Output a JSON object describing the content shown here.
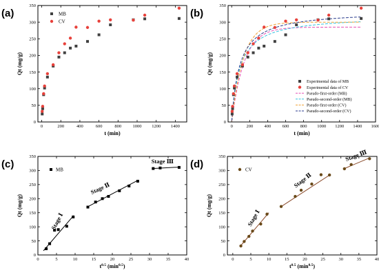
{
  "chart_data": [
    {
      "id": "a",
      "panel_label": "(a)",
      "type": "scatter",
      "xlabel": "t (min)",
      "ylabel": "Qt (mg/g)",
      "xlim": [
        -40,
        1520
      ],
      "ylim": [
        0,
        350
      ],
      "xticks": [
        0,
        200,
        400,
        600,
        800,
        1000,
        1200,
        1400
      ],
      "yticks": [
        0,
        50,
        100,
        150,
        200,
        250,
        300,
        350
      ],
      "legend": "top-left",
      "series": [
        {
          "name": "MB",
          "marker": "square",
          "color": "#404040",
          "x": [
            5,
            10,
            20,
            30,
            60,
            120,
            180,
            240,
            300,
            360,
            480,
            600,
            720,
            960,
            1080,
            1440
          ],
          "y": [
            24,
            40,
            82,
            102,
            135,
            168,
            195,
            208,
            222,
            228,
            242,
            262,
            292,
            307,
            310,
            311
          ]
        },
        {
          "name": "CV",
          "marker": "circle",
          "color": "#e8413b",
          "x": [
            5,
            10,
            20,
            30,
            60,
            120,
            180,
            240,
            300,
            360,
            480,
            600,
            720,
            960,
            1080,
            1440
          ],
          "y": [
            32,
            47,
            85,
            108,
            145,
            172,
            208,
            235,
            252,
            285,
            284,
            303,
            307,
            306,
            321,
            342
          ]
        }
      ]
    },
    {
      "id": "b",
      "panel_label": "(b)",
      "type": "scatter",
      "xlabel": "t (min)",
      "ylabel": "Qt (mg/g)",
      "xlim": [
        -40,
        1600
      ],
      "ylim": [
        0,
        350
      ],
      "xticks": [
        0,
        200,
        400,
        600,
        800,
        1000,
        1200,
        1400,
        1600
      ],
      "yticks": [
        0,
        50,
        100,
        150,
        200,
        250,
        300,
        350
      ],
      "legend": "bottom-right",
      "series": [
        {
          "name": "Experimental data of MB",
          "marker": "square",
          "color": "#404040",
          "x": [
            5,
            10,
            20,
            30,
            60,
            120,
            180,
            240,
            300,
            360,
            480,
            600,
            720,
            960,
            1080,
            1440
          ],
          "y": [
            24,
            40,
            82,
            102,
            135,
            168,
            195,
            208,
            222,
            228,
            242,
            262,
            292,
            307,
            310,
            311
          ]
        },
        {
          "name": "Experimental data of CV",
          "marker": "circle",
          "color": "#e8413b",
          "x": [
            5,
            10,
            20,
            30,
            60,
            120,
            180,
            240,
            300,
            360,
            480,
            600,
            720,
            960,
            1080,
            1440
          ],
          "y": [
            32,
            47,
            85,
            108,
            145,
            172,
            208,
            235,
            252,
            285,
            284,
            303,
            307,
            306,
            321,
            342
          ]
        }
      ],
      "fits": [
        {
          "name": "Pseudo-first-order (MB)",
          "color": "#e64fb5",
          "model": "pfo",
          "qe": 285,
          "k": 0.0072
        },
        {
          "name": "Pseudo-second-order (MB)",
          "color": "#33c3e0",
          "model": "pso",
          "qe": 320,
          "k": 3.5e-05
        },
        {
          "name": "Pseudo-first-order (CV)",
          "color": "#f0a030",
          "model": "pfo",
          "qe": 300,
          "k": 0.0078
        },
        {
          "name": "Pseudo-second-order (CV)",
          "color": "#283a8c",
          "model": "pso",
          "qe": 335,
          "k": 3.4e-05
        }
      ]
    },
    {
      "id": "c",
      "panel_label": "(c)",
      "type": "scatter",
      "xlabel": "t^0.5 (min^0.5)",
      "ylabel": "Qt (mg/g)",
      "xlim": [
        0,
        40
      ],
      "ylim": [
        0,
        350
      ],
      "xticks": [
        0,
        5,
        10,
        15,
        20,
        25,
        30,
        35,
        40
      ],
      "yticks": [
        0,
        50,
        100,
        150,
        200,
        250,
        300,
        350
      ],
      "legend": "top-left",
      "series": [
        {
          "name": "MB",
          "marker": "square",
          "color": "#000000",
          "x": [
            2.24,
            3.16,
            4.47,
            5.48,
            7.75,
            9.49,
            13.42,
            15.49,
            17.32,
            18.97,
            21.91,
            24.49,
            26.83,
            30.98,
            32.86,
            37.95
          ],
          "y": [
            22,
            40,
            88,
            90,
            102,
            135,
            170,
            188,
            200,
            208,
            228,
            245,
            262,
            307,
            309,
            311
          ]
        }
      ],
      "stages": [
        {
          "label": "Stage Ⅰ",
          "line": [
            [
              1.5,
              15
            ],
            [
              9.6,
              140
            ]
          ]
        },
        {
          "label": "Stage Ⅱ",
          "line": [
            [
              13.2,
              170
            ],
            [
              27,
              266
            ]
          ]
        },
        {
          "label": "Stage Ⅲ",
          "line": [
            [
              30.8,
              307
            ],
            [
              38,
              312
            ]
          ]
        }
      ]
    },
    {
      "id": "d",
      "panel_label": "(d)",
      "type": "scatter",
      "xlabel": "t^0.5 (min^0.5)",
      "ylabel": "Qt (mg/g)",
      "xlim": [
        -1.5,
        40
      ],
      "ylim": [
        0,
        350
      ],
      "xticks": [
        0,
        5,
        10,
        15,
        20,
        25,
        30,
        35,
        40
      ],
      "yticks": [
        0,
        50,
        100,
        150,
        200,
        250,
        300,
        350
      ],
      "legend": "top-left",
      "series": [
        {
          "name": "CV",
          "marker": "circle",
          "color": "#6a4a1a",
          "x": [
            2.24,
            3.16,
            4.47,
            5.48,
            7.75,
            9.49,
            13.42,
            17.32,
            18.97,
            21.91,
            24.49,
            26.83,
            30.98,
            32.86,
            37.95
          ],
          "y": [
            32,
            48,
            66,
            85,
            110,
            145,
            172,
            208,
            230,
            252,
            285,
            284,
            306,
            321,
            342
          ]
        }
      ],
      "stages": [
        {
          "label": "Stage Ⅰ",
          "line": [
            [
              2,
              30
            ],
            [
              10,
              150
            ]
          ]
        },
        {
          "label": "Stage Ⅱ",
          "line": [
            [
              13.2,
              170
            ],
            [
              27,
              285
            ]
          ]
        },
        {
          "label": "Stage Ⅲ",
          "line": [
            [
              30.8,
              306
            ],
            [
              38,
              345
            ]
          ]
        }
      ]
    }
  ]
}
